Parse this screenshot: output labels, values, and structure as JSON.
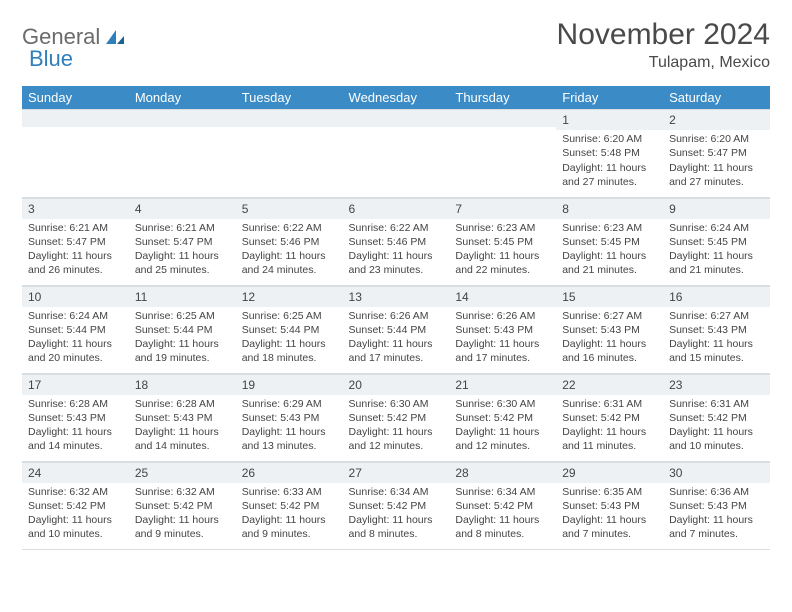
{
  "logo": {
    "text1": "General",
    "text2": "Blue"
  },
  "title": "November 2024",
  "location": "Tulapam, Mexico",
  "colors": {
    "header_bg": "#3b8bc6",
    "header_text": "#ffffff",
    "daynum_bg": "#eef1f3",
    "border": "#d8dde2",
    "text": "#444444",
    "logo_gray": "#6b6b6b",
    "logo_blue": "#2f7fbc"
  },
  "day_names": [
    "Sunday",
    "Monday",
    "Tuesday",
    "Wednesday",
    "Thursday",
    "Friday",
    "Saturday"
  ],
  "weeks": [
    [
      {
        "n": "",
        "s": "",
        "ss": "",
        "d": ""
      },
      {
        "n": "",
        "s": "",
        "ss": "",
        "d": ""
      },
      {
        "n": "",
        "s": "",
        "ss": "",
        "d": ""
      },
      {
        "n": "",
        "s": "",
        "ss": "",
        "d": ""
      },
      {
        "n": "",
        "s": "",
        "ss": "",
        "d": ""
      },
      {
        "n": "1",
        "s": "Sunrise: 6:20 AM",
        "ss": "Sunset: 5:48 PM",
        "d": "Daylight: 11 hours and 27 minutes."
      },
      {
        "n": "2",
        "s": "Sunrise: 6:20 AM",
        "ss": "Sunset: 5:47 PM",
        "d": "Daylight: 11 hours and 27 minutes."
      }
    ],
    [
      {
        "n": "3",
        "s": "Sunrise: 6:21 AM",
        "ss": "Sunset: 5:47 PM",
        "d": "Daylight: 11 hours and 26 minutes."
      },
      {
        "n": "4",
        "s": "Sunrise: 6:21 AM",
        "ss": "Sunset: 5:47 PM",
        "d": "Daylight: 11 hours and 25 minutes."
      },
      {
        "n": "5",
        "s": "Sunrise: 6:22 AM",
        "ss": "Sunset: 5:46 PM",
        "d": "Daylight: 11 hours and 24 minutes."
      },
      {
        "n": "6",
        "s": "Sunrise: 6:22 AM",
        "ss": "Sunset: 5:46 PM",
        "d": "Daylight: 11 hours and 23 minutes."
      },
      {
        "n": "7",
        "s": "Sunrise: 6:23 AM",
        "ss": "Sunset: 5:45 PM",
        "d": "Daylight: 11 hours and 22 minutes."
      },
      {
        "n": "8",
        "s": "Sunrise: 6:23 AM",
        "ss": "Sunset: 5:45 PM",
        "d": "Daylight: 11 hours and 21 minutes."
      },
      {
        "n": "9",
        "s": "Sunrise: 6:24 AM",
        "ss": "Sunset: 5:45 PM",
        "d": "Daylight: 11 hours and 21 minutes."
      }
    ],
    [
      {
        "n": "10",
        "s": "Sunrise: 6:24 AM",
        "ss": "Sunset: 5:44 PM",
        "d": "Daylight: 11 hours and 20 minutes."
      },
      {
        "n": "11",
        "s": "Sunrise: 6:25 AM",
        "ss": "Sunset: 5:44 PM",
        "d": "Daylight: 11 hours and 19 minutes."
      },
      {
        "n": "12",
        "s": "Sunrise: 6:25 AM",
        "ss": "Sunset: 5:44 PM",
        "d": "Daylight: 11 hours and 18 minutes."
      },
      {
        "n": "13",
        "s": "Sunrise: 6:26 AM",
        "ss": "Sunset: 5:44 PM",
        "d": "Daylight: 11 hours and 17 minutes."
      },
      {
        "n": "14",
        "s": "Sunrise: 6:26 AM",
        "ss": "Sunset: 5:43 PM",
        "d": "Daylight: 11 hours and 17 minutes."
      },
      {
        "n": "15",
        "s": "Sunrise: 6:27 AM",
        "ss": "Sunset: 5:43 PM",
        "d": "Daylight: 11 hours and 16 minutes."
      },
      {
        "n": "16",
        "s": "Sunrise: 6:27 AM",
        "ss": "Sunset: 5:43 PM",
        "d": "Daylight: 11 hours and 15 minutes."
      }
    ],
    [
      {
        "n": "17",
        "s": "Sunrise: 6:28 AM",
        "ss": "Sunset: 5:43 PM",
        "d": "Daylight: 11 hours and 14 minutes."
      },
      {
        "n": "18",
        "s": "Sunrise: 6:28 AM",
        "ss": "Sunset: 5:43 PM",
        "d": "Daylight: 11 hours and 14 minutes."
      },
      {
        "n": "19",
        "s": "Sunrise: 6:29 AM",
        "ss": "Sunset: 5:43 PM",
        "d": "Daylight: 11 hours and 13 minutes."
      },
      {
        "n": "20",
        "s": "Sunrise: 6:30 AM",
        "ss": "Sunset: 5:42 PM",
        "d": "Daylight: 11 hours and 12 minutes."
      },
      {
        "n": "21",
        "s": "Sunrise: 6:30 AM",
        "ss": "Sunset: 5:42 PM",
        "d": "Daylight: 11 hours and 12 minutes."
      },
      {
        "n": "22",
        "s": "Sunrise: 6:31 AM",
        "ss": "Sunset: 5:42 PM",
        "d": "Daylight: 11 hours and 11 minutes."
      },
      {
        "n": "23",
        "s": "Sunrise: 6:31 AM",
        "ss": "Sunset: 5:42 PM",
        "d": "Daylight: 11 hours and 10 minutes."
      }
    ],
    [
      {
        "n": "24",
        "s": "Sunrise: 6:32 AM",
        "ss": "Sunset: 5:42 PM",
        "d": "Daylight: 11 hours and 10 minutes."
      },
      {
        "n": "25",
        "s": "Sunrise: 6:32 AM",
        "ss": "Sunset: 5:42 PM",
        "d": "Daylight: 11 hours and 9 minutes."
      },
      {
        "n": "26",
        "s": "Sunrise: 6:33 AM",
        "ss": "Sunset: 5:42 PM",
        "d": "Daylight: 11 hours and 9 minutes."
      },
      {
        "n": "27",
        "s": "Sunrise: 6:34 AM",
        "ss": "Sunset: 5:42 PM",
        "d": "Daylight: 11 hours and 8 minutes."
      },
      {
        "n": "28",
        "s": "Sunrise: 6:34 AM",
        "ss": "Sunset: 5:42 PM",
        "d": "Daylight: 11 hours and 8 minutes."
      },
      {
        "n": "29",
        "s": "Sunrise: 6:35 AM",
        "ss": "Sunset: 5:43 PM",
        "d": "Daylight: 11 hours and 7 minutes."
      },
      {
        "n": "30",
        "s": "Sunrise: 6:36 AM",
        "ss": "Sunset: 5:43 PM",
        "d": "Daylight: 11 hours and 7 minutes."
      }
    ]
  ]
}
